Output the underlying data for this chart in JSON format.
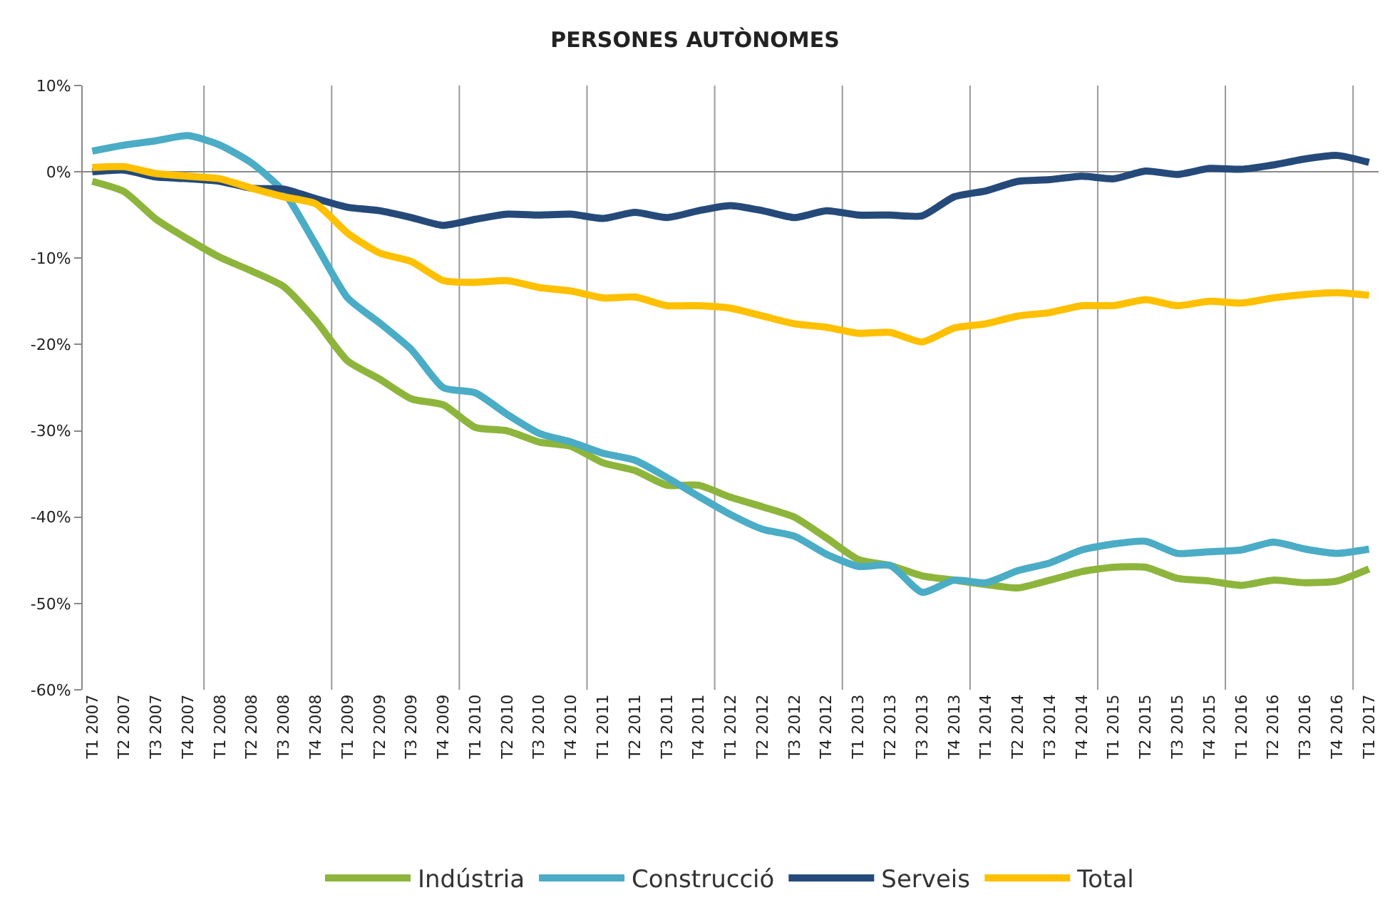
{
  "chart_data": {
    "type": "line",
    "title": "PERSONES AUTÒNOMES",
    "categories": [
      "T1 2007",
      "T2 2007",
      "T3 2007",
      "T4 2007",
      "T1 2008",
      "T2 2008",
      "T3 2008",
      "T4 2008",
      "T1 2009",
      "T2 2009",
      "T3 2009",
      "T4 2009",
      "T1 2010",
      "T2 2010",
      "T3 2010",
      "T4 2010",
      "T1 2011",
      "T2 2011",
      "T3 2011",
      "T4 2011",
      "T1 2012",
      "T2 2012",
      "T3 2012",
      "T4 2012",
      "T1 2013",
      "T2 2013",
      "T3 2013",
      "T4 2013",
      "T1 2014",
      "T2 2014",
      "T3 2014",
      "T4 2014",
      "T1 2015",
      "T2 2015",
      "T3 2015",
      "T4 2015",
      "T1 2016",
      "T2 2016",
      "T3 2016",
      "T4 2016",
      "T1 2017"
    ],
    "series": [
      {
        "name": "Indústria",
        "color": "#8db53c",
        "values": [
          -1.1,
          -2.3,
          -5.5,
          -7.8,
          -9.9,
          -11.5,
          -13.3,
          -17.2,
          -21.9,
          -24.0,
          -26.3,
          -27.0,
          -29.6,
          -30.0,
          -31.3,
          -31.8,
          -33.7,
          -34.6,
          -36.3,
          -36.3,
          -37.7,
          -38.8,
          -40.0,
          -42.4,
          -44.9,
          -45.6,
          -46.8,
          -47.3,
          -47.8,
          -48.2,
          -47.3,
          -46.3,
          -45.8,
          -45.8,
          -47.1,
          -47.4,
          -47.9,
          -47.3,
          -47.6,
          -47.4,
          -46.0
        ]
      },
      {
        "name": "Construcció",
        "color": "#4bacc6",
        "values": [
          2.4,
          3.1,
          3.6,
          4.2,
          3.1,
          1.0,
          -2.3,
          -8.4,
          -14.6,
          -17.5,
          -20.6,
          -25.0,
          -25.6,
          -28.1,
          -30.3,
          -31.3,
          -32.6,
          -33.4,
          -35.4,
          -37.6,
          -39.7,
          -41.4,
          -42.2,
          -44.3,
          -45.7,
          -45.6,
          -48.7,
          -47.3,
          -47.6,
          -46.2,
          -45.3,
          -43.8,
          -43.1,
          -42.8,
          -44.2,
          -44.0,
          -43.8,
          -42.9,
          -43.7,
          -44.2,
          -43.7
        ]
      },
      {
        "name": "Serveis",
        "color": "#254a7a",
        "values": [
          0.0,
          0.2,
          -0.6,
          -0.8,
          -1.1,
          -1.9,
          -2.0,
          -3.1,
          -4.1,
          -4.5,
          -5.3,
          -6.2,
          -5.5,
          -4.9,
          -5.0,
          -4.9,
          -5.4,
          -4.7,
          -5.3,
          -4.5,
          -3.9,
          -4.5,
          -5.3,
          -4.5,
          -5.0,
          -5.0,
          -5.1,
          -2.9,
          -2.2,
          -1.1,
          -0.9,
          -0.5,
          -0.8,
          0.1,
          -0.3,
          0.4,
          0.3,
          0.8,
          1.5,
          1.9,
          1.1
        ]
      },
      {
        "name": "Total",
        "color": "#ffc000",
        "values": [
          0.5,
          0.6,
          -0.2,
          -0.5,
          -0.8,
          -1.9,
          -2.9,
          -3.7,
          -7.1,
          -9.4,
          -10.4,
          -12.6,
          -12.8,
          -12.6,
          -13.4,
          -13.8,
          -14.6,
          -14.5,
          -15.5,
          -15.5,
          -15.8,
          -16.7,
          -17.6,
          -18.0,
          -18.7,
          -18.6,
          -19.7,
          -18.1,
          -17.6,
          -16.7,
          -16.3,
          -15.5,
          -15.5,
          -14.8,
          -15.5,
          -15.0,
          -15.2,
          -14.6,
          -14.2,
          -14.0,
          -14.3
        ]
      }
    ],
    "ylim": [
      -60,
      10
    ],
    "yticks": [
      {
        "value": -60,
        "label": "-60%"
      },
      {
        "value": -50,
        "label": "-50%"
      },
      {
        "value": -40,
        "label": "-40%"
      },
      {
        "value": -30,
        "label": "-30%"
      },
      {
        "value": -20,
        "label": "-20%"
      },
      {
        "value": -10,
        "label": "-10%"
      },
      {
        "value": 0,
        "label": "0%"
      },
      {
        "value": 10,
        "label": "10%"
      }
    ],
    "grid": "x",
    "legend": "bottom",
    "marker": "none",
    "line_style": "solid"
  }
}
